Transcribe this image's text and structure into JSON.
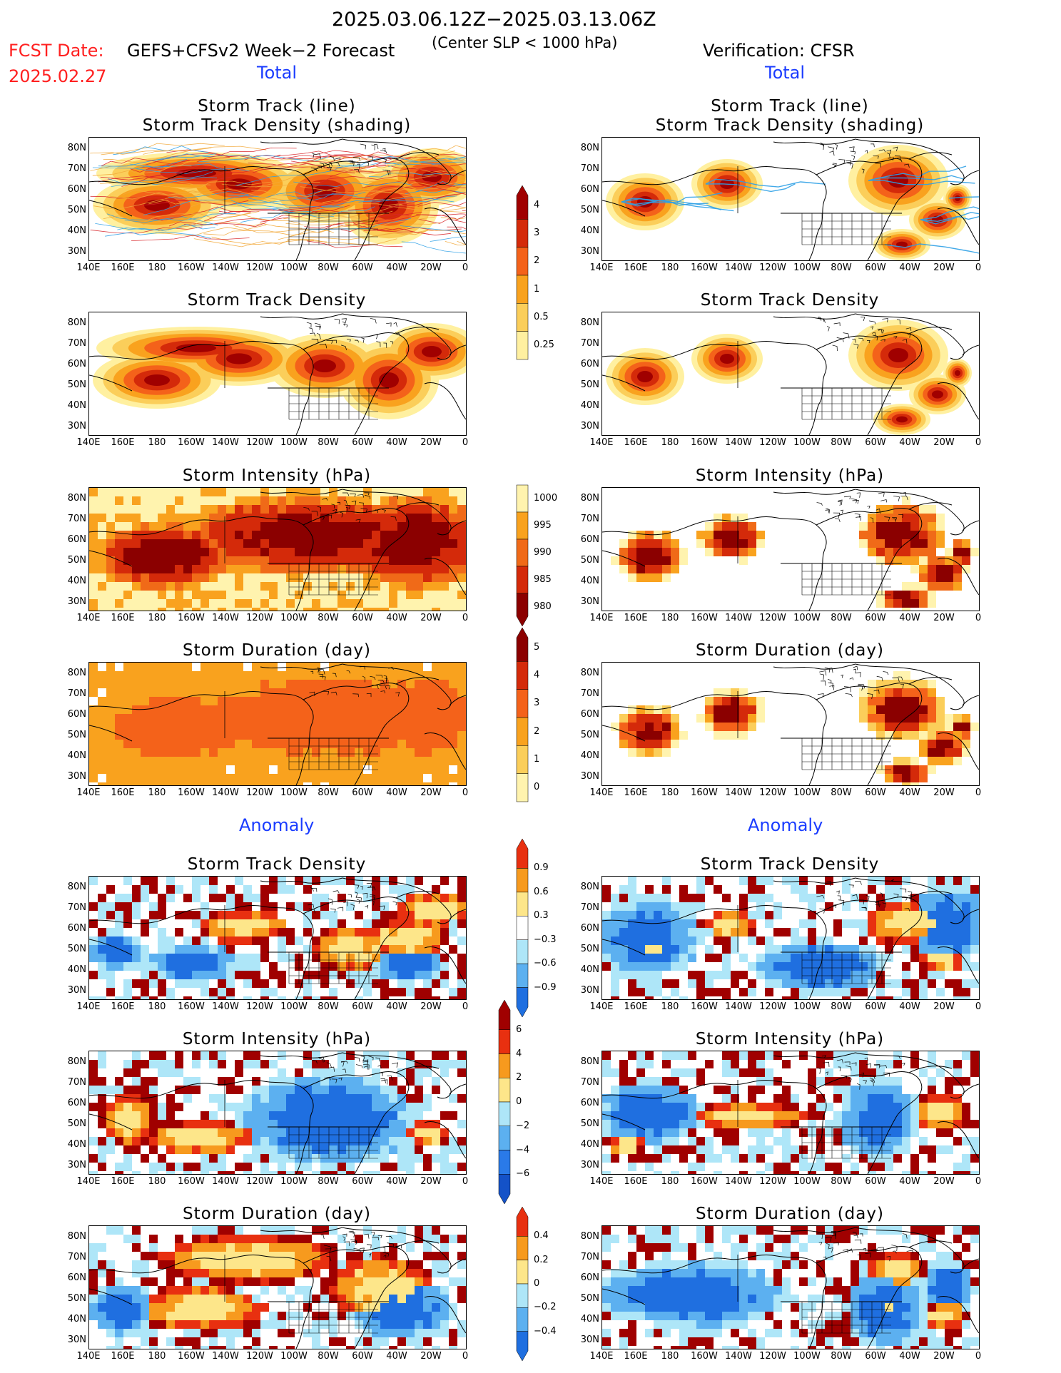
{
  "header": {
    "date_range": "2025.03.06.12Z−2025.03.13.06Z",
    "fcst_label": "FCST Date:",
    "fcst_date": "2025.02.27",
    "forecast_title": "GEFS+CFSv2 Week−2 Forecast",
    "center_slp": "(Center SLP < 1000 hPa)",
    "verification": "Verification: CFSR"
  },
  "sections": {
    "total": "Total",
    "anomaly": "Anomaly"
  },
  "panel_titles": {
    "track_line": "Storm Track (line)",
    "track_shading": "Storm Track Density (shading)",
    "density": "Storm Track Density",
    "intensity": "Storm Intensity (hPa)",
    "duration": "Storm Duration (day)"
  },
  "axes": {
    "lat_labels": [
      "80N",
      "70N",
      "60N",
      "50N",
      "40N",
      "30N"
    ],
    "lon_labels": [
      "140E",
      "160E",
      "180",
      "160W",
      "140W",
      "120W",
      "100W",
      "80W",
      "60W",
      "40W",
      "20W",
      "0"
    ]
  },
  "colorbars": {
    "density": {
      "labels": [
        "4",
        "3",
        "2",
        "1",
        "0.5",
        "0.25"
      ],
      "colors": [
        "#a00000",
        "#d42a0a",
        "#f4621a",
        "#f9a21e",
        "#fbce5a",
        "#fff0a0"
      ]
    },
    "intensity": {
      "labels": [
        "1000",
        "995",
        "990",
        "985",
        "980"
      ],
      "colors": [
        "#fff3ae",
        "#f9a21e",
        "#f06a18",
        "#d42a0a",
        "#8b0000"
      ]
    },
    "duration": {
      "labels": [
        "5",
        "4",
        "3",
        "2",
        "1",
        "0"
      ],
      "colors": [
        "#8b0000",
        "#d42a0a",
        "#f4621a",
        "#f9a21e",
        "#fbce5a",
        "#fff3ae"
      ]
    },
    "anom_density": {
      "labels": [
        "0.9",
        "0.6",
        "0.3",
        "−0.3",
        "−0.6",
        "−0.9"
      ],
      "colors": [
        "#e83010",
        "#f79a1e",
        "#fde68a",
        "#ffffff",
        "#aee6f8",
        "#5cb0f0",
        "#1f6fe0"
      ]
    },
    "anom_intensity": {
      "labels": [
        "6",
        "4",
        "2",
        "0",
        "−2",
        "−4",
        "−6"
      ],
      "colors": [
        "#a00000",
        "#e83010",
        "#f79a1e",
        "#fde68a",
        "#aee6f8",
        "#5cb0f0",
        "#2a7ae8",
        "#1452c8"
      ]
    },
    "anom_duration": {
      "labels": [
        "0.4",
        "0.2",
        "0",
        "−0.2",
        "−0.4"
      ],
      "colors": [
        "#e83010",
        "#f79a1e",
        "#fde68a",
        "#aee6f8",
        "#5cb0f0",
        "#1f6fe0"
      ]
    }
  },
  "colors": {
    "land_line": "#000000",
    "track_orange": "#f2a83a",
    "track_blue": "#2ea0e6",
    "track_red": "#d8262a"
  }
}
